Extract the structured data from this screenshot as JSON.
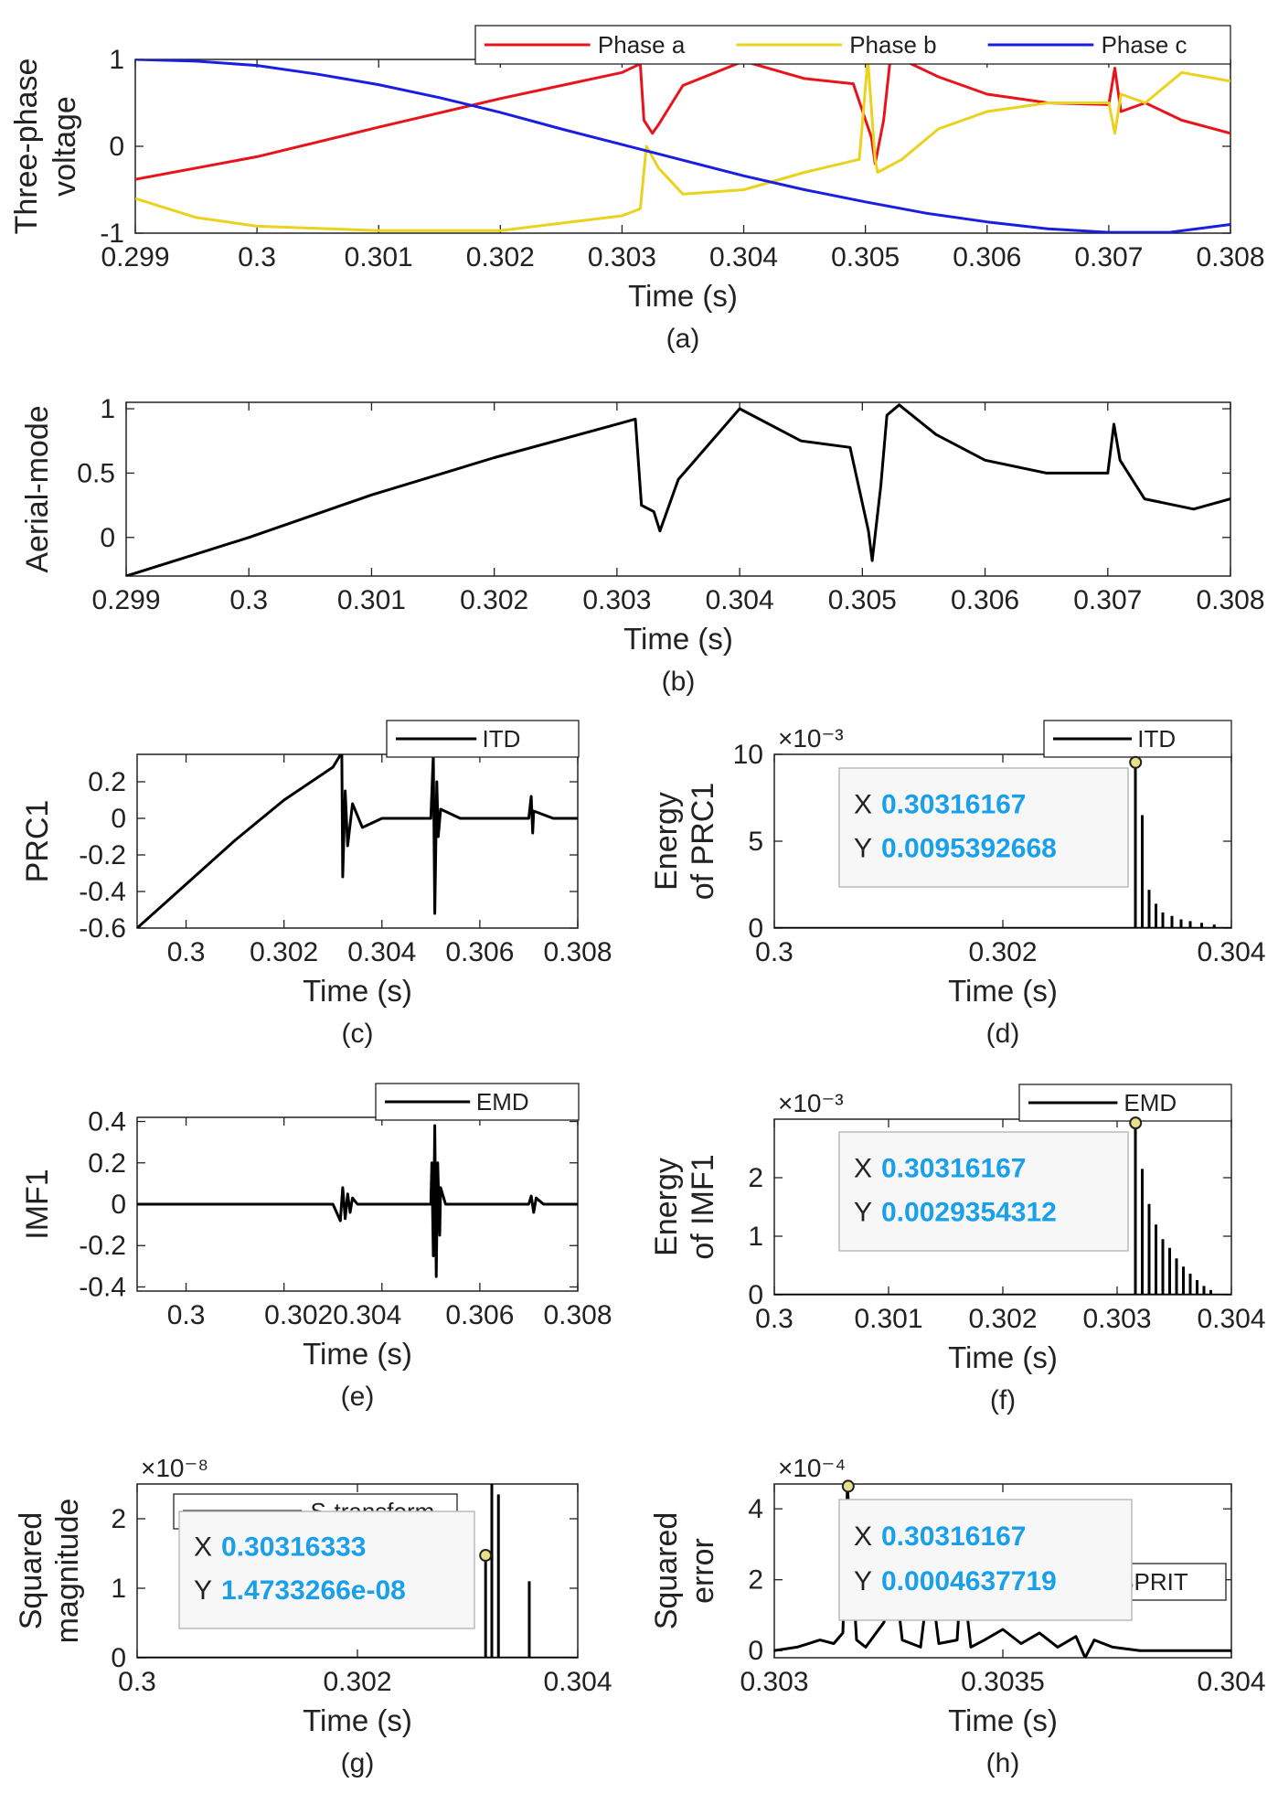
{
  "chart_data": [
    {
      "id": "a",
      "type": "line",
      "caption": "(a)",
      "xlabel": "Time (s)",
      "ylabel": [
        "Three-phase",
        "voltage"
      ],
      "xlim": [
        0.299,
        0.308
      ],
      "ylim": [
        -1,
        1
      ],
      "xticks": [
        0.299,
        0.3,
        0.301,
        0.302,
        0.303,
        0.304,
        0.305,
        0.306,
        0.307,
        0.308
      ],
      "xtick_labels": [
        "0.299",
        "0.3",
        "0.301",
        "0.302",
        "0.303",
        "0.304",
        "0.305",
        "0.306",
        "0.307",
        "0.308"
      ],
      "yticks": [
        -1,
        0,
        1
      ],
      "ytick_labels": [
        "-1",
        "0",
        "1"
      ],
      "legend": "top-right, horizontal",
      "series": [
        {
          "name": "Phase a",
          "color": "#e8141b",
          "x": [
            0.299,
            0.3,
            0.301,
            0.302,
            0.303,
            0.30315,
            0.30318,
            0.30325,
            0.3033,
            0.3035,
            0.304,
            0.3045,
            0.3049,
            0.30505,
            0.30508,
            0.30515,
            0.3052,
            0.3053,
            0.3056,
            0.306,
            0.3065,
            0.307,
            0.30705,
            0.3071,
            0.3073,
            0.3076,
            0.308
          ],
          "y": [
            -0.38,
            -0.12,
            0.22,
            0.55,
            0.85,
            0.95,
            0.3,
            0.15,
            0.25,
            0.7,
            0.98,
            0.78,
            0.72,
            0.1,
            -0.2,
            0.3,
            0.95,
            1.0,
            0.8,
            0.6,
            0.5,
            0.48,
            0.9,
            0.4,
            0.5,
            0.3,
            0.15
          ]
        },
        {
          "name": "Phase b",
          "color": "#ebd21c",
          "x": [
            0.299,
            0.2995,
            0.3,
            0.301,
            0.302,
            0.303,
            0.30315,
            0.3032,
            0.3033,
            0.3035,
            0.304,
            0.3045,
            0.30495,
            0.30502,
            0.30508,
            0.3051,
            0.3053,
            0.3056,
            0.306,
            0.3065,
            0.307,
            0.30705,
            0.3071,
            0.3073,
            0.3076,
            0.308
          ],
          "y": [
            -0.6,
            -0.82,
            -0.92,
            -0.97,
            -0.97,
            -0.8,
            -0.72,
            0.0,
            -0.25,
            -0.55,
            -0.5,
            -0.3,
            -0.15,
            1.0,
            -0.15,
            -0.3,
            -0.15,
            0.2,
            0.4,
            0.5,
            0.5,
            0.15,
            0.6,
            0.5,
            0.85,
            0.75
          ]
        },
        {
          "name": "Phase c",
          "color": "#1a1ee0",
          "x": [
            0.299,
            0.2995,
            0.3,
            0.3005,
            0.301,
            0.3015,
            0.302,
            0.3025,
            0.303,
            0.3035,
            0.304,
            0.3045,
            0.305,
            0.3055,
            0.306,
            0.3065,
            0.307,
            0.3075,
            0.308
          ],
          "y": [
            1.0,
            0.98,
            0.93,
            0.83,
            0.71,
            0.56,
            0.39,
            0.2,
            0.02,
            -0.16,
            -0.34,
            -0.5,
            -0.64,
            -0.77,
            -0.87,
            -0.95,
            -0.99,
            -0.99,
            -0.9
          ]
        }
      ]
    },
    {
      "id": "b",
      "type": "line",
      "caption": "(b)",
      "xlabel": "Time (s)",
      "ylabel": [
        "Aerial-mode"
      ],
      "xlim": [
        0.299,
        0.308
      ],
      "ylim": [
        -0.3,
        1.05
      ],
      "xticks": [
        0.299,
        0.3,
        0.301,
        0.302,
        0.303,
        0.304,
        0.305,
        0.306,
        0.307,
        0.308
      ],
      "xtick_labels": [
        "0.299",
        "0.3",
        "0.301",
        "0.302",
        "0.303",
        "0.304",
        "0.305",
        "0.306",
        "0.307",
        "0.308"
      ],
      "yticks": [
        0,
        0.5,
        1
      ],
      "ytick_labels": [
        "0",
        "0.5",
        "1"
      ],
      "series": [
        {
          "color": "#000000",
          "x": [
            0.299,
            0.2995,
            0.3,
            0.301,
            0.302,
            0.303,
            0.30315,
            0.3032,
            0.3033,
            0.30335,
            0.3035,
            0.304,
            0.3045,
            0.3049,
            0.30505,
            0.30508,
            0.30515,
            0.3052,
            0.3053,
            0.3056,
            0.306,
            0.3065,
            0.307,
            0.30705,
            0.3071,
            0.3073,
            0.3077,
            0.308
          ],
          "y": [
            -0.3,
            -0.15,
            0.0,
            0.33,
            0.62,
            0.88,
            0.92,
            0.25,
            0.2,
            0.05,
            0.45,
            1.0,
            0.75,
            0.7,
            0.05,
            -0.18,
            0.4,
            0.95,
            1.03,
            0.8,
            0.6,
            0.5,
            0.5,
            0.88,
            0.6,
            0.3,
            0.22,
            0.3
          ]
        }
      ]
    },
    {
      "id": "c",
      "type": "line",
      "caption": "(c)",
      "xlabel": "Time (s)",
      "ylabel": [
        "PRC1"
      ],
      "xlim": [
        0.299,
        0.308
      ],
      "ylim": [
        -0.6,
        0.35
      ],
      "xticks": [
        0.3,
        0.302,
        0.304,
        0.306,
        0.308
      ],
      "xtick_labels": [
        "0.3",
        "0.302",
        "0.304",
        "0.306",
        "0.308"
      ],
      "yticks": [
        -0.6,
        -0.4,
        -0.2,
        0,
        0.2
      ],
      "ytick_labels": [
        "-0.6",
        "-0.4",
        "-0.2",
        "0",
        "0.2"
      ],
      "legend": "top-right",
      "series": [
        {
          "name": "ITD",
          "color": "#000000",
          "x": [
            0.299,
            0.2995,
            0.3,
            0.301,
            0.302,
            0.303,
            0.30318,
            0.3032,
            0.30325,
            0.3033,
            0.3034,
            0.3036,
            0.304,
            0.3045,
            0.305,
            0.30505,
            0.30508,
            0.30512,
            0.30515,
            0.3052,
            0.3056,
            0.306,
            0.3065,
            0.307,
            0.30705,
            0.30708,
            0.3071,
            0.3075,
            0.308
          ],
          "y": [
            -0.6,
            -0.48,
            -0.36,
            -0.12,
            0.1,
            0.28,
            0.36,
            -0.32,
            0.15,
            -0.15,
            0.08,
            -0.05,
            0.0,
            0.0,
            0.0,
            0.35,
            -0.52,
            0.2,
            -0.1,
            0.05,
            0.0,
            0.0,
            0.0,
            0.0,
            0.12,
            -0.08,
            0.04,
            0.0,
            0.0
          ]
        }
      ]
    },
    {
      "id": "d",
      "type": "line",
      "caption": "(d)",
      "xlabel": "Time (s)",
      "ylabel": [
        "Energy",
        "of PRC1"
      ],
      "xlim": [
        0.3,
        0.304
      ],
      "ylim": [
        0,
        0.01
      ],
      "exponent_label": "×10⁻³",
      "xticks": [
        0.3,
        0.302,
        0.304
      ],
      "xtick_labels": [
        "0.3",
        "0.302",
        "0.304"
      ],
      "yticks": [
        0,
        0.005,
        0.01
      ],
      "ytick_labels": [
        "0",
        "5",
        "10"
      ],
      "legend": "top-right",
      "series": [
        {
          "name": "ITD",
          "color": "#000000",
          "spikes": [
            {
              "x": 0.30316,
              "y": 0.00954
            },
            {
              "x": 0.30322,
              "y": 0.0065
            },
            {
              "x": 0.30328,
              "y": 0.0022
            },
            {
              "x": 0.30334,
              "y": 0.0014
            },
            {
              "x": 0.3034,
              "y": 0.0009
            },
            {
              "x": 0.30348,
              "y": 0.0007
            },
            {
              "x": 0.30356,
              "y": 0.0005
            },
            {
              "x": 0.30364,
              "y": 0.0004
            },
            {
              "x": 0.30374,
              "y": 0.0003
            },
            {
              "x": 0.30385,
              "y": 0.0002
            }
          ]
        }
      ],
      "datatip": {
        "x": 0.30316167,
        "y": 0.0095392668,
        "x_label": "0.30316167",
        "y_label": "0.0095392668"
      }
    },
    {
      "id": "e",
      "type": "line",
      "caption": "(e)",
      "xlabel": "Time (s)",
      "ylabel": [
        "IMF1"
      ],
      "xlim": [
        0.299,
        0.308
      ],
      "ylim": [
        -0.42,
        0.42
      ],
      "xticks": [
        0.3,
        0.302,
        0.304,
        0.306,
        0.308
      ],
      "xtick_labels": [
        "0.3",
        "0.302",
        "0.304",
        "0.306",
        "0.308"
      ],
      "xtick_glued_text": "0.3020.304",
      "yticks": [
        -0.4,
        -0.2,
        0,
        0.2,
        0.4
      ],
      "ytick_labels": [
        "-0.4",
        "-0.2",
        "0",
        "0.2",
        "0.4"
      ],
      "legend": "top-right",
      "series": [
        {
          "name": "EMD",
          "color": "#000000",
          "x": [
            0.299,
            0.303,
            0.30315,
            0.3032,
            0.30325,
            0.3033,
            0.30335,
            0.3034,
            0.3035,
            0.3037,
            0.3045,
            0.305,
            0.30502,
            0.30505,
            0.30508,
            0.30511,
            0.30514,
            0.30518,
            0.3052,
            0.3053,
            0.3055,
            0.307,
            0.30705,
            0.3071,
            0.30715,
            0.3073,
            0.308
          ],
          "y": [
            0.0,
            0.0,
            -0.08,
            0.08,
            -0.07,
            0.05,
            -0.04,
            0.03,
            0.0,
            0.0,
            0.0,
            0.0,
            0.2,
            -0.25,
            0.38,
            -0.35,
            0.2,
            -0.15,
            0.08,
            0.0,
            0.0,
            0.0,
            0.04,
            -0.04,
            0.03,
            0.0,
            0.0
          ]
        }
      ]
    },
    {
      "id": "f",
      "type": "line",
      "caption": "(f)",
      "xlabel": "Time (s)",
      "ylabel": [
        "Energy",
        "of IMF1"
      ],
      "xlim": [
        0.3,
        0.304
      ],
      "ylim": [
        0,
        0.003
      ],
      "exponent_label": "×10⁻³",
      "xticks": [
        0.3,
        0.301,
        0.302,
        0.303,
        0.304
      ],
      "xtick_labels": [
        "0.3",
        "0.301",
        "0.302",
        "0.303",
        "0.304"
      ],
      "yticks": [
        0,
        0.001,
        0.002
      ],
      "ytick_labels": [
        "0",
        "1",
        "2"
      ],
      "legend": "top-right",
      "series": [
        {
          "name": "EMD",
          "color": "#000000",
          "spikes": [
            {
              "x": 0.30316,
              "y": 0.00294
            },
            {
              "x": 0.30322,
              "y": 0.00215
            },
            {
              "x": 0.30328,
              "y": 0.00155
            },
            {
              "x": 0.30334,
              "y": 0.0012
            },
            {
              "x": 0.3034,
              "y": 0.00095
            },
            {
              "x": 0.30346,
              "y": 0.0008
            },
            {
              "x": 0.30352,
              "y": 0.00062
            },
            {
              "x": 0.30358,
              "y": 0.00048
            },
            {
              "x": 0.30364,
              "y": 0.00036
            },
            {
              "x": 0.3037,
              "y": 0.00025
            },
            {
              "x": 0.30376,
              "y": 0.00015
            },
            {
              "x": 0.30382,
              "y": 8e-05
            }
          ]
        }
      ],
      "datatip": {
        "x": 0.30316167,
        "y": 0.0029354312,
        "x_label": "0.30316167",
        "y_label": "0.0029354312"
      }
    },
    {
      "id": "g",
      "type": "line",
      "caption": "(g)",
      "xlabel": "Time (s)",
      "ylabel": [
        "Squared",
        "magnitude"
      ],
      "xlim": [
        0.3,
        0.304
      ],
      "ylim": [
        0,
        2.5e-08
      ],
      "exponent_label": "×10⁻⁸",
      "xticks": [
        0.3,
        0.302,
        0.304
      ],
      "xtick_labels": [
        "0.3",
        "0.302",
        "0.304"
      ],
      "yticks": [
        0,
        1e-08,
        2e-08
      ],
      "ytick_labels": [
        "0",
        "1",
        "2"
      ],
      "legend": "top-left",
      "series": [
        {
          "name": "S-transform",
          "color": "#000000",
          "spikes": [
            {
              "x": 0.30316333,
              "y": 1.4733266e-08
            },
            {
              "x": 0.30322,
              "y": 2.5e-08
            },
            {
              "x": 0.30328,
              "y": 2.35e-08
            },
            {
              "x": 0.30356,
              "y": 1.1e-08
            }
          ]
        }
      ],
      "datatip": {
        "x": 0.30316333,
        "y": 1.4733266e-08,
        "x_label": "0.30316333",
        "y_label": "1.4733266e-08"
      }
    },
    {
      "id": "h",
      "type": "line",
      "caption": "(h)",
      "xlabel": "Time (s)",
      "ylabel": [
        "Squared",
        "error"
      ],
      "xlim": [
        0.303,
        0.304
      ],
      "ylim": [
        -2e-05,
        0.00047
      ],
      "exponent_label": "×10⁻⁴",
      "xticks": [
        0.303,
        0.3035,
        0.304
      ],
      "xtick_labels": [
        "0.303",
        "0.3035",
        "0.304"
      ],
      "yticks": [
        0,
        0.0002,
        0.0004
      ],
      "ytick_labels": [
        "0",
        "2",
        "4"
      ],
      "legend": "bottom-right",
      "series": [
        {
          "name": "ESPRIT",
          "color": "#000000",
          "x": [
            0.303,
            0.30305,
            0.3031,
            0.30313,
            0.30315,
            0.30316,
            0.30318,
            0.3032,
            0.30324,
            0.30326,
            0.30328,
            0.30332,
            0.30334,
            0.30336,
            0.3034,
            0.30341,
            0.30343,
            0.30346,
            0.3035,
            0.30354,
            0.30358,
            0.30362,
            0.30366,
            0.30368,
            0.3037,
            0.30374,
            0.3038,
            0.3039,
            0.304
          ],
          "y": [
            0.0,
            1e-05,
            3e-05,
            2e-05,
            5e-05,
            0.000464,
            3e-05,
            1e-05,
            8e-05,
            0.00025,
            3e-05,
            1e-05,
            0.00022,
            2e-05,
            3e-05,
            0.00024,
            1e-05,
            3e-05,
            6e-05,
            2e-05,
            5e-05,
            1e-05,
            4e-05,
            -2e-05,
            3e-05,
            1e-05,
            0.0,
            0.0,
            0.0
          ]
        }
      ],
      "datatip": {
        "x": 0.30316167,
        "y": 0.0004637719,
        "x_label": "0.30316167",
        "y_label": "0.0004637719"
      }
    }
  ]
}
